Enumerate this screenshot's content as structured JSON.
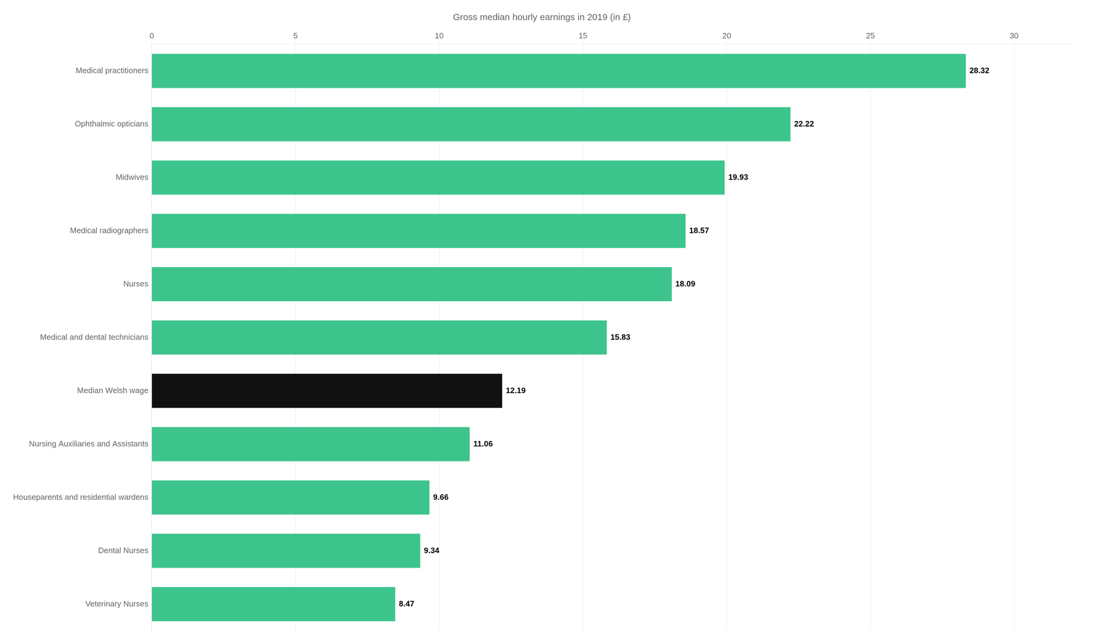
{
  "chart_data": {
    "type": "bar",
    "orientation": "horizontal",
    "title": "Gross median hourly earnings in 2019 (in £)",
    "categories": [
      "Medical practitioners",
      "Ophthalmic opticians",
      "Midwives",
      "Medical radiographers",
      "Nurses",
      "Medical and dental technicians",
      "Median Welsh wage",
      "Nursing Auxiliaries and Assistants",
      "Houseparents and residential wardens",
      "Dental Nurses",
      "Veterinary Nurses"
    ],
    "values": [
      28.32,
      22.22,
      19.93,
      18.57,
      18.09,
      15.83,
      12.19,
      11.06,
      9.66,
      9.34,
      8.47
    ],
    "colors": [
      "#3dc48d",
      "#3dc48d",
      "#3dc48d",
      "#3dc48d",
      "#3dc48d",
      "#3dc48d",
      "#111111",
      "#3dc48d",
      "#3dc48d",
      "#3dc48d",
      "#3dc48d"
    ],
    "xlim": [
      0,
      32
    ],
    "xticks": [
      0,
      5,
      10,
      15,
      20,
      25,
      30
    ],
    "grid": true,
    "data_labels": true
  }
}
